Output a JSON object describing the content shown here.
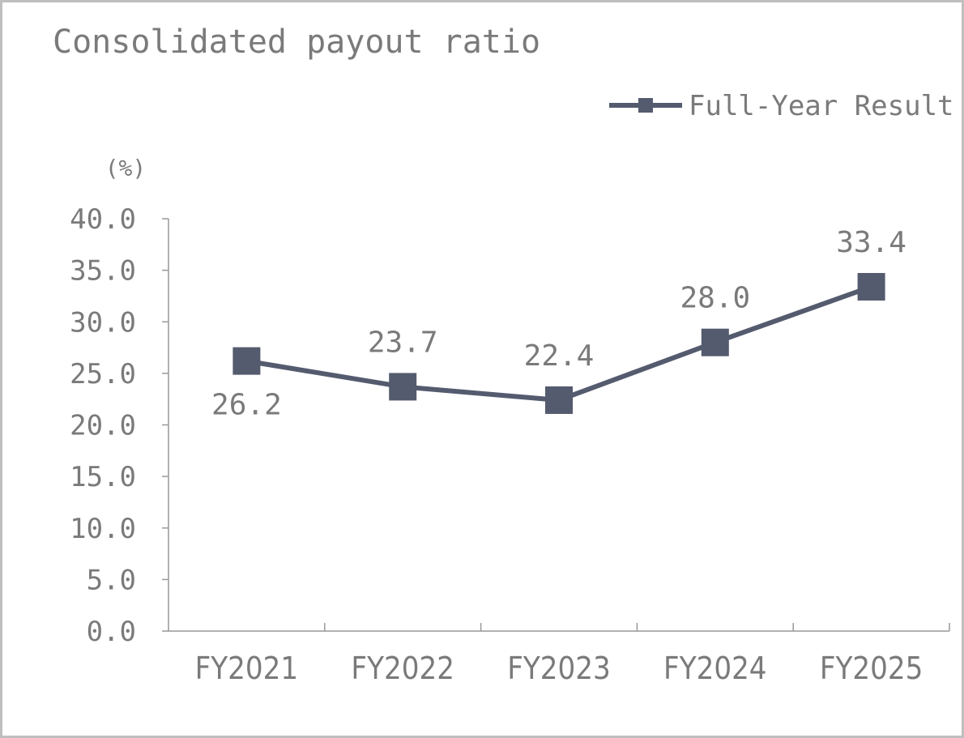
{
  "chart_data": {
    "type": "line",
    "title": "Consolidated payout ratio",
    "unit_label": "(%)",
    "categories": [
      "FY2021",
      "FY2022",
      "FY2023",
      "FY2024",
      "FY2025"
    ],
    "series": [
      {
        "name": "Full-Year Result",
        "values": [
          26.2,
          23.7,
          22.4,
          28.0,
          33.4
        ],
        "data_labels": [
          "26.2",
          "23.7",
          "22.4",
          "28.0",
          "33.4"
        ],
        "data_label_positions": [
          "below",
          "above",
          "above",
          "above",
          "above"
        ],
        "marker": "square",
        "color": "#555b6e"
      }
    ],
    "y_ticks": [
      "40.0",
      "35.0",
      "30.0",
      "25.0",
      "20.0",
      "15.0",
      "10.0",
      "5.0",
      "0.0"
    ],
    "ylim": [
      0,
      40
    ],
    "grid": false,
    "legend_position": "top-right",
    "colors": {
      "text": "#7a7a7a",
      "axis": "#999999",
      "border": "#bfbfbf"
    }
  }
}
